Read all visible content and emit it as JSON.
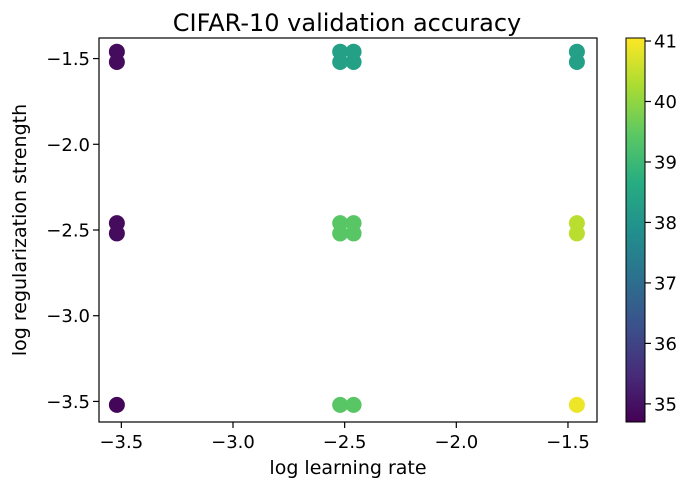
{
  "chart_data": {
    "type": "scatter",
    "title": "CIFAR-10 validation accuracy",
    "xlabel": "log learning rate",
    "ylabel": "log regularization strength",
    "xlim": [
      -3.6,
      -1.37
    ],
    "ylim": [
      -3.62,
      -1.38
    ],
    "xticks": [
      -3.5,
      -3.0,
      -2.5,
      -2.0,
      -1.5
    ],
    "xtick_labels": [
      "−3.5",
      "−3.0",
      "−2.5",
      "−2.0",
      "−1.5"
    ],
    "yticks": [
      -3.5,
      -3.0,
      -2.5,
      -2.0,
      -1.5
    ],
    "ytick_labels": [
      "−3.5",
      "−3.0",
      "−2.5",
      "−2.0",
      "−1.5"
    ],
    "grid": false,
    "colormap": "viridis",
    "colorbar": {
      "range": [
        34.7,
        41.05
      ],
      "ticks": [
        35,
        36,
        37,
        38,
        39,
        40,
        41
      ],
      "tick_labels": [
        "35",
        "36",
        "37",
        "38",
        "39",
        "40",
        "41"
      ]
    },
    "points": [
      {
        "x": -3.52,
        "y": -1.46,
        "value": 34.9
      },
      {
        "x": -3.52,
        "y": -1.52,
        "value": 34.9
      },
      {
        "x": -3.52,
        "y": -2.46,
        "value": 34.9
      },
      {
        "x": -3.52,
        "y": -2.52,
        "value": 34.9
      },
      {
        "x": -3.52,
        "y": -3.52,
        "value": 34.8
      },
      {
        "x": -2.52,
        "y": -1.46,
        "value": 38.3
      },
      {
        "x": -2.52,
        "y": -1.52,
        "value": 38.3
      },
      {
        "x": -2.46,
        "y": -1.46,
        "value": 38.3
      },
      {
        "x": -2.46,
        "y": -1.52,
        "value": 38.3
      },
      {
        "x": -2.52,
        "y": -2.46,
        "value": 39.4
      },
      {
        "x": -2.52,
        "y": -2.52,
        "value": 39.4
      },
      {
        "x": -2.46,
        "y": -2.46,
        "value": 39.4
      },
      {
        "x": -2.46,
        "y": -2.52,
        "value": 39.4
      },
      {
        "x": -2.52,
        "y": -3.52,
        "value": 39.4
      },
      {
        "x": -2.46,
        "y": -3.52,
        "value": 39.4
      },
      {
        "x": -1.46,
        "y": -1.46,
        "value": 38.3
      },
      {
        "x": -1.46,
        "y": -1.52,
        "value": 38.3
      },
      {
        "x": -1.46,
        "y": -2.46,
        "value": 40.4
      },
      {
        "x": -1.46,
        "y": -2.52,
        "value": 40.4
      },
      {
        "x": -1.46,
        "y": -3.52,
        "value": 40.9
      }
    ]
  }
}
